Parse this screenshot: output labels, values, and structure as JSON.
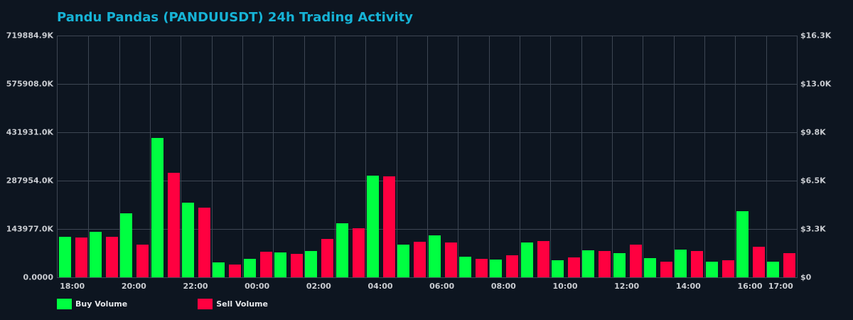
{
  "chart_data": {
    "type": "bar",
    "title": "Pandu Pandas (PANDUUSDT) 24h Trading Activity",
    "xlabel": "",
    "ylabel": "",
    "grid": true,
    "legend_position": "bottom-left",
    "categories": [
      "18:00",
      "19:00",
      "20:00",
      "21:00",
      "22:00",
      "23:00",
      "00:00",
      "01:00",
      "02:00",
      "03:00",
      "04:00",
      "05:00",
      "06:00",
      "07:00",
      "08:00",
      "09:00",
      "10:00",
      "11:00",
      "12:00",
      "13:00",
      "14:00",
      "15:00",
      "16:00",
      "17:00"
    ],
    "x_tick_labels": [
      "18:00",
      "20:00",
      "22:00",
      "00:00",
      "02:00",
      "04:00",
      "06:00",
      "08:00",
      "10:00",
      "12:00",
      "14:00",
      "16:00",
      "17:00"
    ],
    "x_tick_indices": [
      0,
      2,
      4,
      6,
      8,
      10,
      12,
      14,
      16,
      18,
      20,
      22,
      23
    ],
    "ylim": [
      0,
      719884.9
    ],
    "y_unit": "K",
    "y_tick_labels_left": [
      "0.0000",
      "143977.0K",
      "287954.0K",
      "431931.0K",
      "575908.0K",
      "719884.9K"
    ],
    "y_tick_labels_right": [
      "$0",
      "$3.3K",
      "$6.5K",
      "$9.8K",
      "$13.0K",
      "$16.3K"
    ],
    "ylim_right": [
      0,
      16300
    ],
    "series": [
      {
        "name": "Buy Volume",
        "color": "#00ff41",
        "values": [
          120686,
          135507,
          190557,
          414991,
          222317,
          44463,
          55050,
          74106,
          78340,
          160915,
          302774,
          97396,
          124921,
          61402,
          52933,
          103748,
          50815,
          80457,
          71988,
          57167,
          82575,
          46581,
          196909,
          46581
        ]
      },
      {
        "name": "Sell Volume",
        "color": "#ff0040",
        "values": [
          118569,
          120686,
          97396,
          311243,
          207495,
          38111,
          76223,
          69871,
          114334,
          146094,
          300657,
          105865,
          103748,
          55050,
          65636,
          107982,
          59284,
          78340,
          97396,
          46581,
          78340,
          50815,
          91044,
          71988
        ]
      }
    ]
  },
  "header": {
    "title": "Pandu Pandas (PANDUUSDT) 24h Trading Activity"
  },
  "legend": {
    "buy_label": "Buy Volume",
    "sell_label": "Sell Volume",
    "buy_color": "#00ff41",
    "sell_color": "#ff0040"
  }
}
